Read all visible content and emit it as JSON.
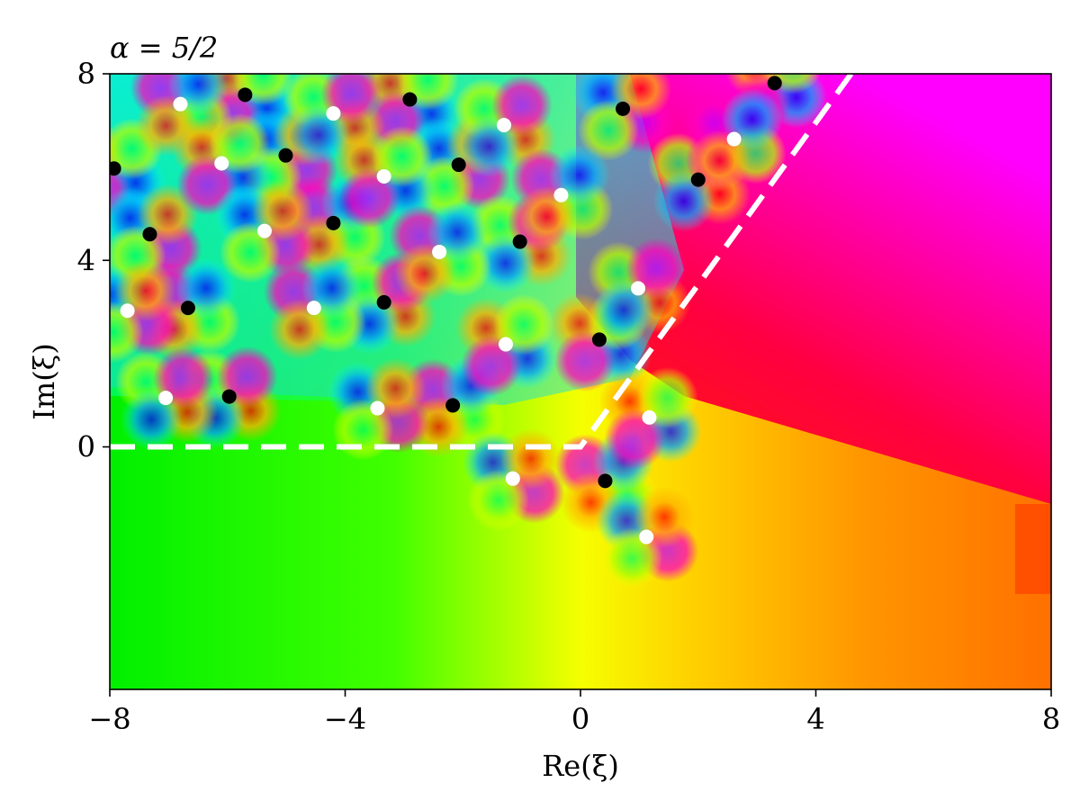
{
  "chart_data": {
    "type": "heatmap",
    "title": "α = 5/2",
    "xlabel": "Re(ξ)",
    "ylabel": "Im(ξ)",
    "xlim": [
      -8,
      8
    ],
    "ylim": [
      -5.2,
      8
    ],
    "x_ticks": [
      {
        "value": -8,
        "label": "−8"
      },
      {
        "value": -4,
        "label": "−4"
      },
      {
        "value": 0,
        "label": "0"
      },
      {
        "value": 4,
        "label": "4"
      },
      {
        "value": 8,
        "label": "8"
      }
    ],
    "y_ticks": [
      {
        "value": 0,
        "label": "0"
      },
      {
        "value": 4,
        "label": "4"
      },
      {
        "value": 8,
        "label": "8"
      }
    ],
    "grid": false,
    "color_encoding": "phase (hue) of complex function",
    "series": [
      {
        "color": "#000000",
        "points": [
          [
            -7.93,
            5.97
          ],
          [
            -7.32,
            4.56
          ],
          [
            -6.67,
            2.98
          ],
          [
            -5.97,
            1.08
          ],
          [
            -5.7,
            7.55
          ],
          [
            -5.01,
            6.25
          ],
          [
            -4.2,
            4.8
          ],
          [
            -3.34,
            3.1
          ],
          [
            -2.9,
            7.45
          ],
          [
            -2.07,
            6.05
          ],
          [
            -2.17,
            0.89
          ],
          [
            -1.03,
            4.4
          ],
          [
            0.32,
            2.3
          ],
          [
            0.72,
            7.25
          ],
          [
            0.42,
            -0.73
          ],
          [
            2.0,
            5.73
          ],
          [
            3.3,
            7.8
          ]
        ]
      },
      {
        "color": "#ffffff",
        "points": [
          [
            -7.7,
            2.92
          ],
          [
            -6.8,
            7.35
          ],
          [
            -7.05,
            1.05
          ],
          [
            -6.1,
            6.08
          ],
          [
            -5.37,
            4.63
          ],
          [
            -4.53,
            2.98
          ],
          [
            -4.2,
            7.15
          ],
          [
            -3.34,
            5.8
          ],
          [
            -3.45,
            0.83
          ],
          [
            -2.4,
            4.18
          ],
          [
            -1.3,
            6.9
          ],
          [
            -1.27,
            2.2
          ],
          [
            -1.15,
            -0.68
          ],
          [
            -0.33,
            5.4
          ],
          [
            0.98,
            3.4
          ],
          [
            1.17,
            0.63
          ],
          [
            1.12,
            -1.93
          ],
          [
            2.61,
            6.6
          ]
        ]
      }
    ],
    "lines": [
      {
        "color": "#ffffff",
        "style": "dashed",
        "points": [
          [
            -8,
            0
          ],
          [
            0,
            0
          ],
          [
            4.6,
            8
          ]
        ]
      }
    ]
  }
}
